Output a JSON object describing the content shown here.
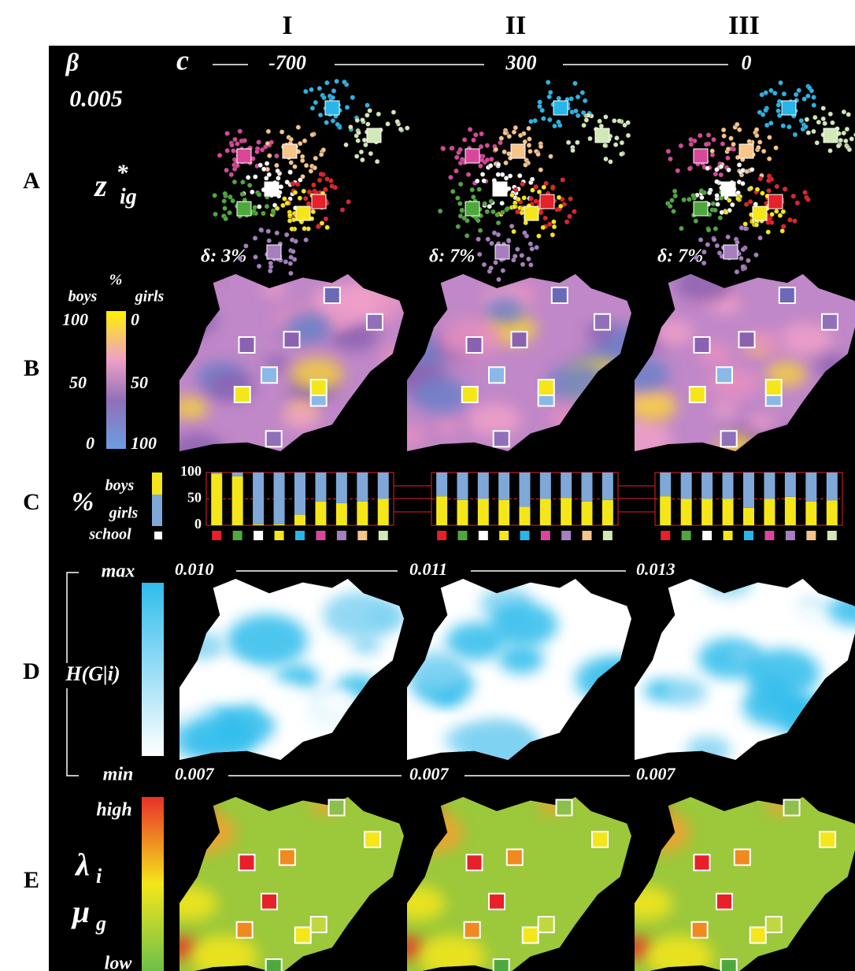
{
  "columns": [
    "I",
    "II",
    "III"
  ],
  "rows": [
    "A",
    "B",
    "C",
    "D",
    "E"
  ],
  "row_a": {
    "beta": "β",
    "beta_value": "0.005",
    "c_label": "c",
    "c_values": [
      "-700",
      "300",
      "0"
    ],
    "z_label": {
      "base": "z",
      "sup": "*",
      "sub": "ig"
    },
    "delta": [
      "δ: 3%",
      "δ: 7%",
      "δ: 7%"
    ]
  },
  "row_b": {
    "left_title": "boys",
    "unit": "%",
    "right_title": "girls",
    "left_ticks": [
      "100",
      "50",
      "0"
    ],
    "right_ticks": [
      "0",
      "50",
      "100"
    ]
  },
  "row_c": {
    "unit": "%",
    "boys": "boys",
    "girls": "girls",
    "school": "school"
  },
  "chart_data": [
    {
      "type": "bar",
      "stacked": true,
      "tick_labels": true,
      "categories": [
        null,
        null,
        null,
        null,
        null,
        null,
        null,
        null,
        null
      ],
      "category_colors": [
        "#e8202a",
        "#4fa83d",
        "#ffffff",
        "#f5e61a",
        "#29b5e8",
        "#d9479a",
        "#a77fc0",
        "#f7c48a",
        "#d2e8b8"
      ],
      "series": [
        {
          "name": "boys",
          "color": "#f5e61a",
          "values": [
            97,
            93,
            2,
            2,
            20,
            45,
            42,
            45,
            50
          ]
        },
        {
          "name": "girls",
          "color": "#7fa8d8",
          "values": [
            3,
            7,
            98,
            98,
            80,
            55,
            58,
            55,
            50
          ]
        }
      ],
      "ylim": [
        0,
        100
      ],
      "yticks": [
        0,
        50,
        100
      ]
    },
    {
      "type": "bar",
      "stacked": true,
      "tick_labels": false,
      "categories": [
        null,
        null,
        null,
        null,
        null,
        null,
        null,
        null,
        null
      ],
      "category_colors": [
        "#e8202a",
        "#4fa83d",
        "#ffffff",
        "#f5e61a",
        "#29b5e8",
        "#d9479a",
        "#a77fc0",
        "#f7c48a",
        "#d2e8b8"
      ],
      "series": [
        {
          "color": "#f5e61a",
          "values": [
            55,
            48,
            50,
            48,
            35,
            50,
            52,
            45,
            48
          ]
        },
        {
          "color": "#7fa8d8",
          "values": [
            45,
            52,
            50,
            52,
            65,
            50,
            48,
            55,
            52
          ]
        }
      ],
      "ylim": [
        0,
        100
      ],
      "yticks": [
        0,
        50,
        100
      ]
    },
    {
      "type": "bar",
      "stacked": true,
      "tick_labels": false,
      "categories": [
        null,
        null,
        null,
        null,
        null,
        null,
        null,
        null,
        null
      ],
      "category_colors": [
        "#e8202a",
        "#4fa83d",
        "#ffffff",
        "#f5e61a",
        "#29b5e8",
        "#d9479a",
        "#a77fc0",
        "#f7c48a",
        "#d2e8b8"
      ],
      "series": [
        {
          "color": "#f5e61a",
          "values": [
            55,
            50,
            50,
            50,
            33,
            50,
            54,
            45,
            47
          ]
        },
        {
          "color": "#7fa8d8",
          "values": [
            45,
            50,
            50,
            50,
            67,
            50,
            46,
            55,
            53
          ]
        }
      ],
      "ylim": [
        0,
        100
      ],
      "yticks": [
        0,
        50,
        100
      ]
    }
  ],
  "row_d": {
    "max": "max",
    "min": "min",
    "label": "H(G|i)",
    "top_values": [
      "0.010",
      "0.011",
      "0.013"
    ],
    "bottom_values": [
      "0.007",
      "0.007",
      "0.007"
    ]
  },
  "row_e": {
    "high": "high",
    "low": "low",
    "lambda": {
      "base": "λ",
      "sub": "i"
    },
    "mu": {
      "base": "μ",
      "sub": "g"
    }
  }
}
